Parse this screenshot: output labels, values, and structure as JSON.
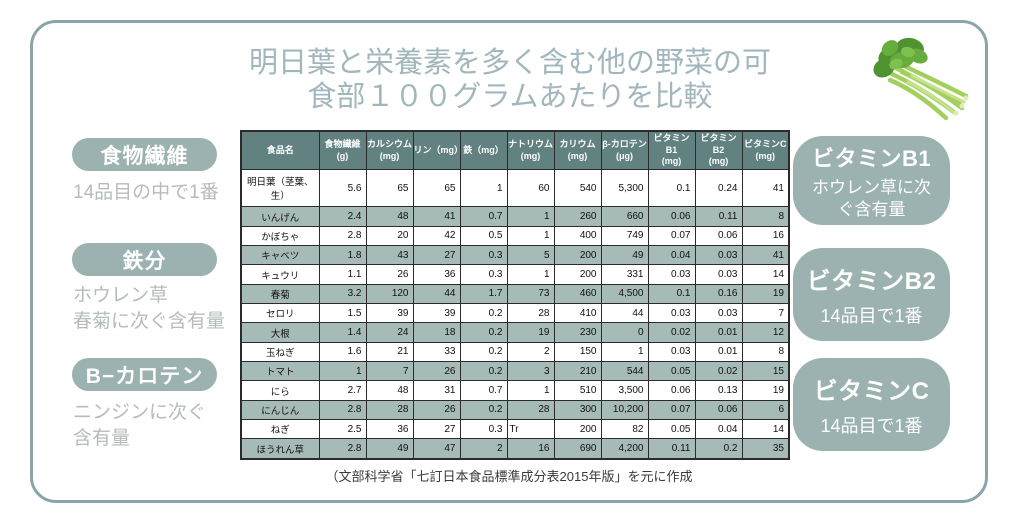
{
  "page": {
    "title": "明日葉と栄養素を多く含む他の野菜の可\n食部１００グラムあたりを比較",
    "footer": "（文部科学省「七訂日本食品標準成分表2015年版」を元に作成"
  },
  "colors": {
    "frame_border": "#8aa5aa",
    "title_text": "#a2b7bd",
    "accent_pill": "#9bb2b0",
    "muted_note": "#b5bcbb",
    "table_header_bg": "#618280",
    "table_alt_row_bg": "#a6bab8",
    "table_border": "#2b2b2b"
  },
  "left_highlights": [
    {
      "label": "食物繊維",
      "note": "14品目の中で1番"
    },
    {
      "label": "鉄分",
      "note": "ホウレン草\n春菊に次ぐ含有量"
    },
    {
      "label": "B−カロテン",
      "note": "ニンジンに次ぐ\n含有量"
    }
  ],
  "right_highlights": [
    {
      "label": "ビタミンB1",
      "note": "ホウレン草に次\nぐ含有量"
    },
    {
      "label": "ビタミンB2",
      "note": "14品目で1番"
    },
    {
      "label": "ビタミンC",
      "note": "14品目で1番"
    }
  ],
  "image": {
    "name": "ashitaba-vegetable-photo"
  },
  "chart_data": {
    "type": "table",
    "title": "明日葉と栄養素を多く含む他の野菜の可食部１００グラムあたりを比較",
    "source": "（文部科学省「七訂日本食品標準成分表2015年版」を元に作成",
    "columns": [
      "食品名",
      "食物繊維\n(g)",
      "カルシウム\n(mg)",
      "リン（mg）",
      "鉄（mg）",
      "ナトリウム\n(mg)",
      "カリウム\n(mg)",
      "β-カロテン\n(μg)",
      "ビタミンB1\n(mg)",
      "ビタミンB2\n(mg)",
      "ビタミンC\n(mg)"
    ],
    "rows": [
      [
        "明日葉（茎葉、生）",
        "5.6",
        "65",
        "65",
        "1",
        "60",
        "540",
        "5,300",
        "0.1",
        "0.24",
        "41"
      ],
      [
        "いんげん",
        "2.4",
        "48",
        "41",
        "0.7",
        "1",
        "260",
        "660",
        "0.06",
        "0.11",
        "8"
      ],
      [
        "かぼちゃ",
        "2.8",
        "20",
        "42",
        "0.5",
        "1",
        "400",
        "749",
        "0.07",
        "0.06",
        "16"
      ],
      [
        "キャベツ",
        "1.8",
        "43",
        "27",
        "0.3",
        "5",
        "200",
        "49",
        "0.04",
        "0.03",
        "41"
      ],
      [
        "キュウリ",
        "1.1",
        "26",
        "36",
        "0.3",
        "1",
        "200",
        "331",
        "0.03",
        "0.03",
        "14"
      ],
      [
        "春菊",
        "3.2",
        "120",
        "44",
        "1.7",
        "73",
        "460",
        "4,500",
        "0.1",
        "0.16",
        "19"
      ],
      [
        "セロリ",
        "1.5",
        "39",
        "39",
        "0.2",
        "28",
        "410",
        "44",
        "0.03",
        "0.03",
        "7"
      ],
      [
        "大根",
        "1.4",
        "24",
        "18",
        "0.2",
        "19",
        "230",
        "0",
        "0.02",
        "0.01",
        "12"
      ],
      [
        "玉ねぎ",
        "1.6",
        "21",
        "33",
        "0.2",
        "2",
        "150",
        "1",
        "0.03",
        "0.01",
        "8"
      ],
      [
        "トマト",
        "1",
        "7",
        "26",
        "0.2",
        "3",
        "210",
        "544",
        "0.05",
        "0.02",
        "15"
      ],
      [
        "にら",
        "2.7",
        "48",
        "31",
        "0.7",
        "1",
        "510",
        "3,500",
        "0.06",
        "0.13",
        "19"
      ],
      [
        "にんじん",
        "2.8",
        "28",
        "26",
        "0.2",
        "28",
        "300",
        "10,200",
        "0.07",
        "0.06",
        "6"
      ],
      [
        "ねぎ",
        "2.5",
        "36",
        "27",
        "0.3",
        "Tr",
        "200",
        "82",
        "0.05",
        "0.04",
        "14"
      ],
      [
        "ほうれん草",
        "2.8",
        "49",
        "47",
        "2",
        "16",
        "690",
        "4,200",
        "0.11",
        "0.2",
        "35"
      ]
    ]
  }
}
